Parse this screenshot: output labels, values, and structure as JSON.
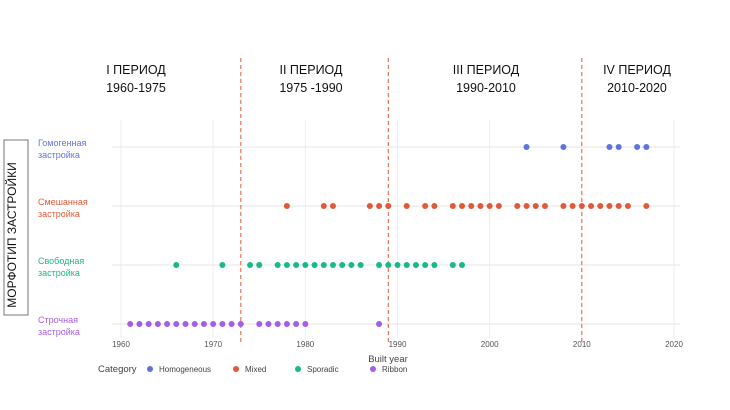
{
  "chart_data": {
    "type": "scatter",
    "xlabel": "Built year",
    "ylabel": "МОРФОТИП ЗАСТРОЙКИ",
    "xlim": [
      1958,
      2020
    ],
    "x_ticks": [
      "1960",
      "1970",
      "1980",
      "1990",
      "2000",
      "2010",
      "2020"
    ],
    "grid": true,
    "legend_title": "Category",
    "legend_position": "bottom-left",
    "categories": [
      {
        "key": "homogeneous",
        "lines": [
          "Гомогенная",
          "застройка"
        ],
        "color": "#5f73e0"
      },
      {
        "key": "mixed",
        "lines": [
          "Смешанная",
          "застройка"
        ],
        "color": "#e05a3a"
      },
      {
        "key": "sporadic",
        "lines": [
          "Свободная",
          "застройка"
        ],
        "color": "#17b98a"
      },
      {
        "key": "ribbon",
        "lines": [
          "Строчная",
          "застройка"
        ],
        "color": "#a45de8"
      }
    ],
    "series": [
      {
        "name": "Homogeneous",
        "category": "homogeneous",
        "color": "#5f73e0",
        "x": [
          2004,
          2008,
          2013,
          2014,
          2016,
          2017
        ]
      },
      {
        "name": "Mixed",
        "category": "mixed",
        "color": "#e05a3a",
        "x": [
          1978,
          1982,
          1983,
          1987,
          1988,
          1989,
          1991,
          1993,
          1994,
          1996,
          1997,
          1998,
          1999,
          2000,
          2001,
          2003,
          2004,
          2005,
          2006,
          2008,
          2009,
          2010,
          2011,
          2012,
          2013,
          2014,
          2015,
          2017
        ]
      },
      {
        "name": "Sporadic",
        "category": "sporadic",
        "color": "#17b98a",
        "x": [
          1966,
          1971,
          1974,
          1975,
          1977,
          1978,
          1979,
          1980,
          1981,
          1982,
          1983,
          1984,
          1985,
          1986,
          1988,
          1989,
          1990,
          1991,
          1992,
          1993,
          1994,
          1996,
          1997
        ]
      },
      {
        "name": "Ribbon",
        "category": "ribbon",
        "color": "#a45de8",
        "x": [
          1961,
          1962,
          1963,
          1964,
          1965,
          1966,
          1967,
          1968,
          1969,
          1970,
          1971,
          1972,
          1973,
          1975,
          1976,
          1977,
          1978,
          1979,
          1980,
          1988
        ]
      }
    ],
    "period_dividers": [
      1973,
      1989,
      2010
    ],
    "period_color": "#e05a3a",
    "periods": [
      {
        "title": "I ПЕРИОД",
        "range": "1960-1975"
      },
      {
        "title": "II ПЕРИОД",
        "range": "1975 -1990"
      },
      {
        "title": "III ПЕРИОД",
        "range": "1990-2010"
      },
      {
        "title": "IV ПЕРИОД",
        "range": "2010-2020"
      }
    ]
  }
}
